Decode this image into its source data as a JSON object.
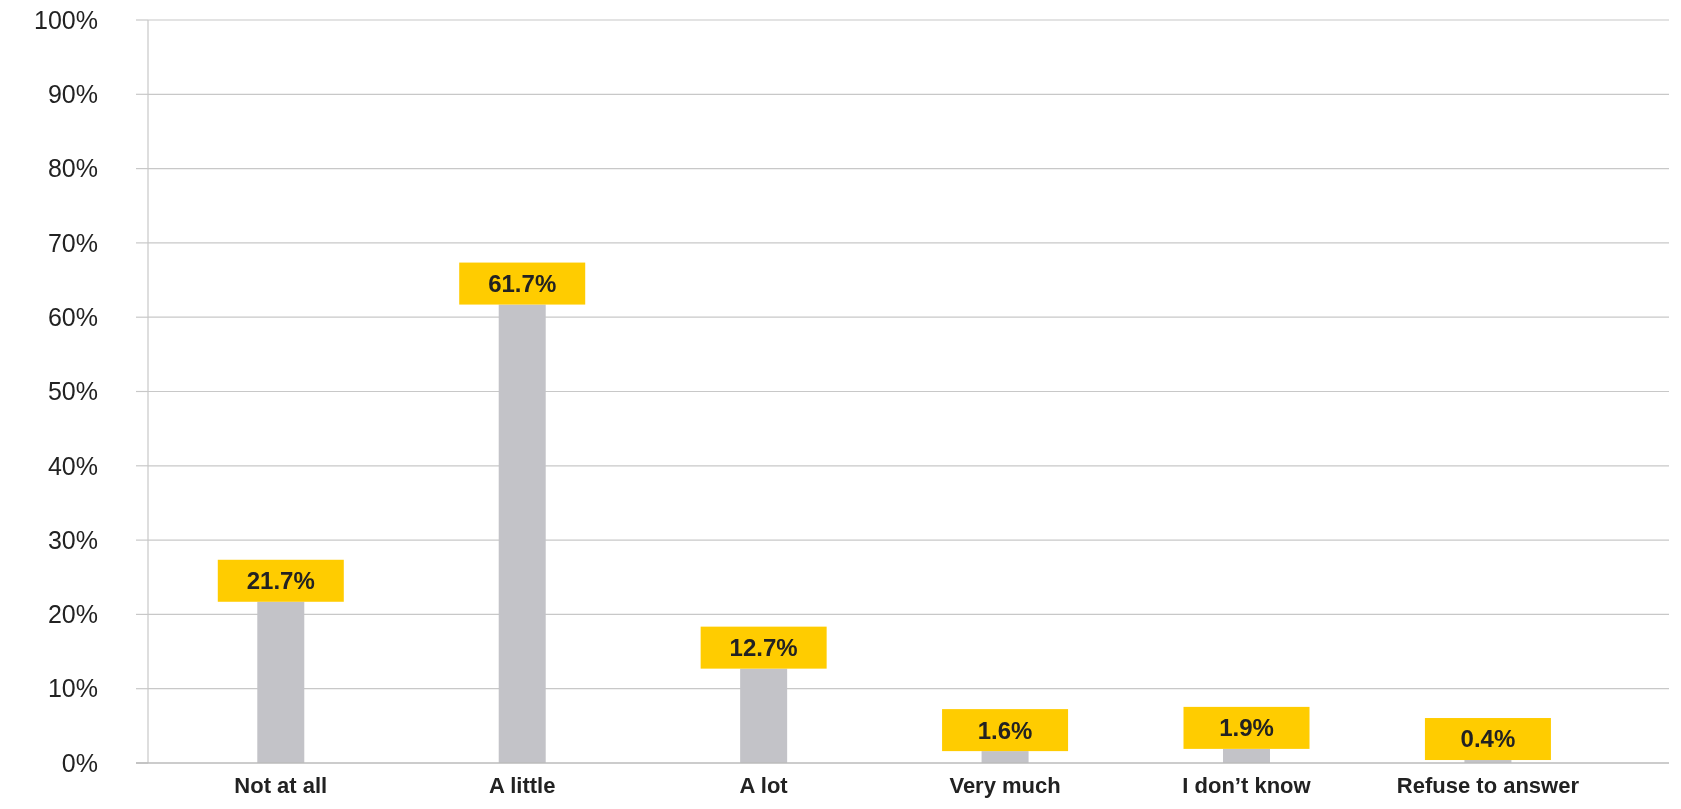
{
  "chart_data": {
    "type": "bar",
    "categories": [
      "Not at all",
      "A little",
      "A lot",
      "Very much",
      "I don’t know",
      "Refuse to answer"
    ],
    "values": [
      21.7,
      61.7,
      12.7,
      1.6,
      1.9,
      0.4
    ],
    "value_labels": [
      "21.7%",
      "61.7%",
      "12.7%",
      "1.6%",
      "1.9%",
      "0.4%"
    ],
    "color": "#c3c3c8",
    "ylim": [
      0,
      100
    ],
    "yticks": [
      {
        "value": 0,
        "label": "0%"
      },
      {
        "value": 10,
        "label": "10%"
      },
      {
        "value": 20,
        "label": "20%"
      },
      {
        "value": 30,
        "label": "30%"
      },
      {
        "value": 40,
        "label": "40%"
      },
      {
        "value": 50,
        "label": "50%"
      },
      {
        "value": 60,
        "label": "60%"
      },
      {
        "value": 70,
        "label": "70%"
      },
      {
        "value": 80,
        "label": "80%"
      },
      {
        "value": 90,
        "label": "90%"
      },
      {
        "value": 100,
        "label": "100%"
      }
    ],
    "grid": "y"
  }
}
